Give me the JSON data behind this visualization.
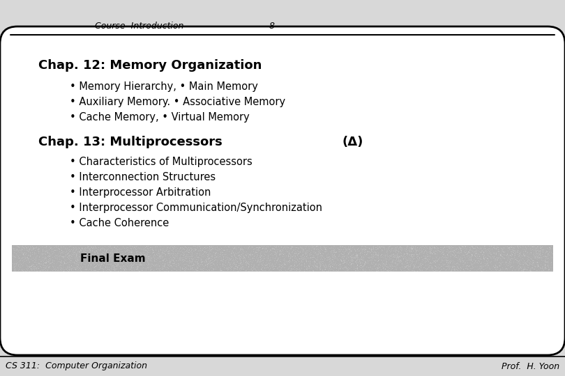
{
  "header_text": "Course  Introduction",
  "header_number": "8",
  "footer_left": "CS 311:  Computer Organization",
  "footer_right": "Prof.  H. Yoon",
  "title1": "Chap. 12: Memory Organization",
  "bullet1_1": "• Memory Hierarchy, • Main Memory",
  "bullet1_2": "• Auxiliary Memory. • Associative Memory",
  "bullet1_3": "• Cache Memory, • Virtual Memory",
  "title2": "Chap. 13: Multiprocessors",
  "title2_note": "(Δ)",
  "bullet2_1": "• Characteristics of Multiprocessors",
  "bullet2_2": "• Interconnection Structures",
  "bullet2_3": "• Interprocessor Arbitration",
  "bullet2_4": "• Interprocessor Communication/Synchronization",
  "bullet2_5": "• Cache Coherence",
  "final_exam_text": "Final Exam",
  "bg_color": "#d8d8d8",
  "box_bg_color": "#ffffff",
  "box_border_color": "#000000",
  "shaded_pattern_color1": "#aaaaaa",
  "shaded_pattern_color2": "#c8c8c8",
  "text_color": "#000000"
}
